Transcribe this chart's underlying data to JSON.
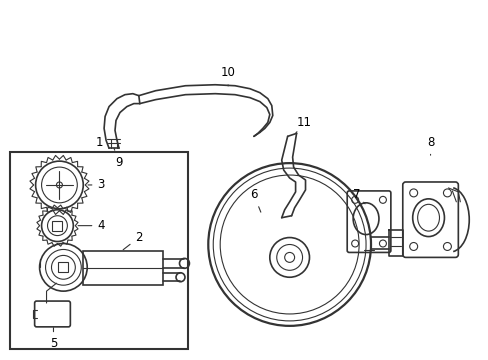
{
  "background_color": "#ffffff",
  "line_color": "#333333",
  "label_color": "#000000",
  "figsize": [
    4.89,
    3.6
  ],
  "dpi": 100
}
